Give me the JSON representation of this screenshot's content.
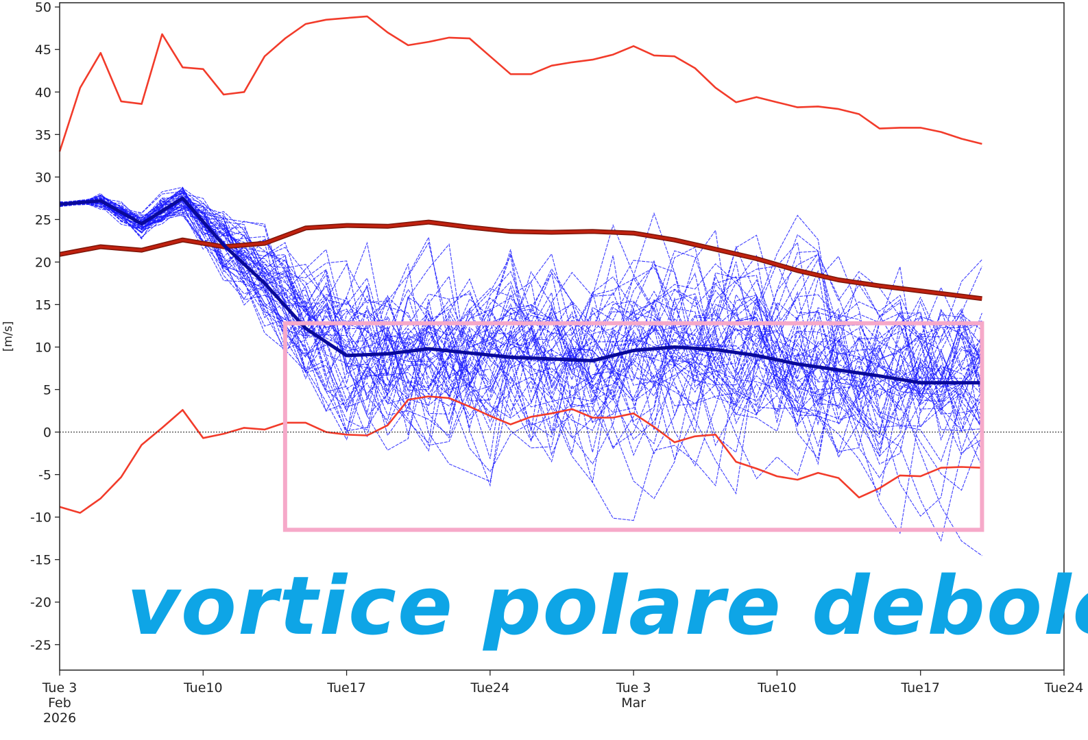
{
  "chart_data": {
    "type": "line",
    "title": "",
    "xlabel": "",
    "ylabel": "[m/s]",
    "ylim": [
      -28,
      50.5
    ],
    "yticks": [
      50,
      45,
      40,
      35,
      30,
      25,
      20,
      15,
      10,
      5,
      0,
      -5,
      -10,
      -15,
      -20,
      -25
    ],
    "xlim": [
      "2026-02-03",
      "2026-03-24"
    ],
    "xtick_labels": [
      {
        "date": "2026-02-03",
        "lines": [
          "Tue 3",
          "Feb",
          "2026"
        ]
      },
      {
        "date": "2026-02-10",
        "lines": [
          "Tue10"
        ]
      },
      {
        "date": "2026-02-17",
        "lines": [
          "Tue17"
        ]
      },
      {
        "date": "2026-02-24",
        "lines": [
          "Tue24"
        ]
      },
      {
        "date": "2026-03-03",
        "lines": [
          "Tue 3",
          "Mar"
        ]
      },
      {
        "date": "2026-03-10",
        "lines": [
          "Tue10"
        ]
      },
      {
        "date": "2026-03-17",
        "lines": [
          "Tue17"
        ]
      },
      {
        "date": "2026-03-24",
        "lines": [
          "Tue24"
        ]
      }
    ],
    "zero_line": true,
    "grid": false,
    "legend": "none",
    "colors": {
      "ensemble": "#1a1aff",
      "ensemble_mean": "#0a0a9a",
      "climatology_extremes": "#f23b2a",
      "climatology_mean": "#c0210f",
      "highlight_box": "#f6a9c9",
      "overlay_text": "#0ea5e6"
    },
    "ensemble_member_count": 50,
    "series": [
      {
        "role": "climatology-max",
        "x": [
          "2026-02-03",
          "2026-02-04",
          "2026-02-05",
          "2026-02-06",
          "2026-02-07",
          "2026-02-08",
          "2026-02-09",
          "2026-02-10",
          "2026-02-11",
          "2026-02-12",
          "2026-02-13",
          "2026-02-14",
          "2026-02-15",
          "2026-02-16",
          "2026-02-17",
          "2026-02-18",
          "2026-02-19",
          "2026-02-20",
          "2026-02-21",
          "2026-02-22",
          "2026-02-23",
          "2026-02-24",
          "2026-02-25",
          "2026-02-26",
          "2026-02-27",
          "2026-02-28",
          "2026-03-01",
          "2026-03-02",
          "2026-03-03",
          "2026-03-04",
          "2026-03-05",
          "2026-03-06",
          "2026-03-07",
          "2026-03-08",
          "2026-03-09",
          "2026-03-10",
          "2026-03-11",
          "2026-03-12",
          "2026-03-13",
          "2026-03-14",
          "2026-03-15",
          "2026-03-16",
          "2026-03-17",
          "2026-03-18",
          "2026-03-19",
          "2026-03-20"
        ],
        "values": [
          33,
          40.5,
          44.6,
          38.9,
          38.6,
          46.8,
          42.9,
          42.7,
          39.7,
          40.0,
          44.2,
          46.3,
          48.0,
          48.5,
          48.7,
          48.9,
          47.0,
          45.5,
          45.9,
          46.4,
          46.3,
          44.2,
          42.1,
          42.1,
          43.1,
          43.5,
          43.8,
          44.4,
          45.4,
          44.3,
          44.2,
          42.8,
          40.5,
          38.8,
          39.4,
          38.8,
          38.2,
          38.3,
          38.0,
          37.4,
          35.7,
          35.8,
          35.8,
          35.3,
          34.5,
          33.9
        ]
      },
      {
        "role": "climatology-mean",
        "x": [
          "2026-02-03",
          "2026-02-05",
          "2026-02-07",
          "2026-02-09",
          "2026-02-11",
          "2026-02-13",
          "2026-02-15",
          "2026-02-17",
          "2026-02-19",
          "2026-02-21",
          "2026-02-23",
          "2026-02-25",
          "2026-02-27",
          "2026-03-01",
          "2026-03-03",
          "2026-03-05",
          "2026-03-07",
          "2026-03-09",
          "2026-03-11",
          "2026-03-13",
          "2026-03-15",
          "2026-03-17",
          "2026-03-20"
        ],
        "values": [
          20.9,
          21.8,
          21.4,
          22.6,
          21.8,
          22.2,
          24.0,
          24.3,
          24.2,
          24.7,
          24.1,
          23.6,
          23.5,
          23.6,
          23.4,
          22.6,
          21.5,
          20.4,
          19.0,
          17.9,
          17.2,
          16.6,
          15.7
        ]
      },
      {
        "role": "climatology-min",
        "x": [
          "2026-02-03",
          "2026-02-04",
          "2026-02-05",
          "2026-02-06",
          "2026-02-07",
          "2026-02-08",
          "2026-02-09",
          "2026-02-10",
          "2026-02-11",
          "2026-02-12",
          "2026-02-13",
          "2026-02-14",
          "2026-02-15",
          "2026-02-16",
          "2026-02-17",
          "2026-02-18",
          "2026-02-19",
          "2026-02-20",
          "2026-02-21",
          "2026-02-22",
          "2026-02-23",
          "2026-02-24",
          "2026-02-25",
          "2026-02-26",
          "2026-02-27",
          "2026-02-28",
          "2026-03-01",
          "2026-03-02",
          "2026-03-03",
          "2026-03-04",
          "2026-03-05",
          "2026-03-06",
          "2026-03-07",
          "2026-03-08",
          "2026-03-09",
          "2026-03-10",
          "2026-03-11",
          "2026-03-12",
          "2026-03-13",
          "2026-03-14",
          "2026-03-15",
          "2026-03-16",
          "2026-03-17",
          "2026-03-18",
          "2026-03-19",
          "2026-03-20"
        ],
        "values": [
          -8.8,
          -9.5,
          -7.8,
          -5.3,
          -1.5,
          0.5,
          2.6,
          -0.7,
          -0.2,
          0.5,
          0.3,
          1.1,
          1.1,
          0.0,
          -0.3,
          -0.4,
          0.8,
          3.8,
          4.2,
          4.0,
          3.0,
          1.9,
          0.9,
          1.8,
          2.2,
          2.7,
          1.7,
          1.7,
          2.2,
          0.6,
          -1.2,
          -0.5,
          -0.3,
          -3.5,
          -4.3,
          -5.2,
          -5.6,
          -4.8,
          -5.4,
          -7.7,
          -6.6,
          -5.1,
          -5.2,
          -4.2,
          -4.1,
          -4.2
        ]
      },
      {
        "role": "ensemble-mean",
        "x": [
          "2026-02-03",
          "2026-02-05",
          "2026-02-07",
          "2026-02-09",
          "2026-02-11",
          "2026-02-13",
          "2026-02-15",
          "2026-02-17",
          "2026-02-19",
          "2026-02-21",
          "2026-02-23",
          "2026-02-25",
          "2026-02-27",
          "2026-03-01",
          "2026-03-03",
          "2026-03-05",
          "2026-03-07",
          "2026-03-09",
          "2026-03-11",
          "2026-03-13",
          "2026-03-15",
          "2026-03-17",
          "2026-03-20"
        ],
        "values": [
          26.8,
          27.2,
          24.5,
          27.5,
          22.0,
          17.5,
          12.2,
          9.0,
          9.2,
          9.8,
          9.3,
          8.8,
          8.6,
          8.4,
          9.6,
          10.0,
          9.7,
          9.0,
          8.0,
          7.3,
          6.6,
          5.8,
          5.8
        ]
      }
    ],
    "annotations": [
      {
        "type": "text",
        "text": "vortice polare debole"
      },
      {
        "type": "highlight-box",
        "x_range": [
          "2026-02-14",
          "2026-03-20"
        ],
        "y_range": [
          -11.5,
          12.8
        ]
      }
    ]
  }
}
